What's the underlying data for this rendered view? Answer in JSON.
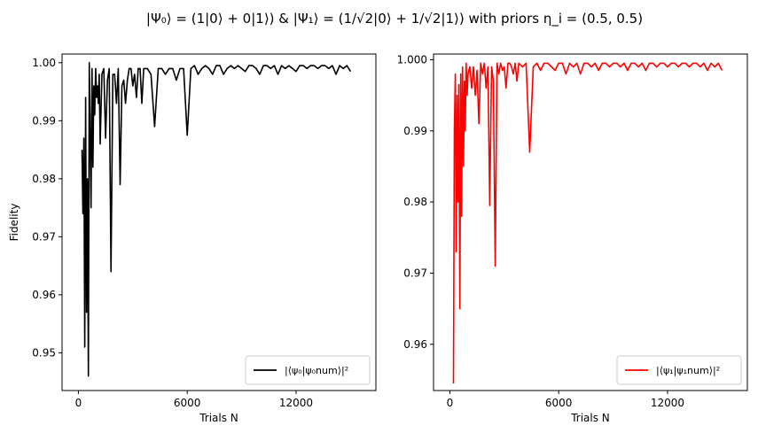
{
  "title": "|Ψ₀⟩ = (1|0⟩ + 0|1⟩) & |Ψ₁⟩ = (1/√2|0⟩ + 1/√2|1⟩) with priors η_i = (0.5, 0.5)",
  "chart_data": [
    {
      "type": "line",
      "panel": "left",
      "xlabel": "Trials N",
      "ylabel": "Fidelity",
      "xlim": [
        -900,
        16400
      ],
      "ylim": [
        0.9435,
        1.0015
      ],
      "xticks": [
        0,
        6000,
        12000
      ],
      "xtick_labels": [
        "0",
        "6000",
        "12000"
      ],
      "yticks": [
        0.95,
        0.96,
        0.97,
        0.98,
        0.99,
        1.0
      ],
      "ytick_labels": [
        "0.95",
        "0.96",
        "0.97",
        "0.98",
        "0.99",
        "1.00"
      ],
      "grid": false,
      "legend_position": "lower-right",
      "series": [
        {
          "name": "|⟨ψ₀|ψ₀num⟩|²",
          "color": "#000000",
          "x": [
            200,
            250,
            300,
            350,
            400,
            450,
            500,
            550,
            600,
            650,
            700,
            750,
            800,
            850,
            900,
            950,
            1000,
            1050,
            1100,
            1150,
            1200,
            1300,
            1400,
            1500,
            1600,
            1700,
            1800,
            1900,
            2000,
            2100,
            2200,
            2300,
            2400,
            2500,
            2600,
            2700,
            2800,
            2900,
            3000,
            3100,
            3200,
            3300,
            3400,
            3500,
            3600,
            3800,
            4000,
            4200,
            4400,
            4600,
            4800,
            5000,
            5200,
            5400,
            5600,
            5800,
            6000,
            6200,
            6400,
            6600,
            6800,
            7000,
            7200,
            7400,
            7600,
            7800,
            8000,
            8200,
            8400,
            8600,
            8800,
            9000,
            9200,
            9400,
            9600,
            9800,
            10000,
            10200,
            10400,
            10600,
            10800,
            11000,
            11200,
            11400,
            11600,
            11800,
            12000,
            12200,
            12400,
            12600,
            12800,
            13000,
            13200,
            13400,
            13600,
            13800,
            14000,
            14200,
            14400,
            14600,
            14800,
            15000
          ],
          "y": [
            0.985,
            0.974,
            0.987,
            0.951,
            0.994,
            0.957,
            0.98,
            0.946,
            1.0,
            0.988,
            0.975,
            0.999,
            0.982,
            0.996,
            0.991,
            0.999,
            0.994,
            0.996,
            0.993,
            0.998,
            0.986,
            0.998,
            0.999,
            0.987,
            0.997,
            0.999,
            0.964,
            0.998,
            0.998,
            0.993,
            0.999,
            0.979,
            0.996,
            0.997,
            0.993,
            0.997,
            0.999,
            0.999,
            0.996,
            0.998,
            0.994,
            0.999,
            0.999,
            0.993,
            0.999,
            0.999,
            0.998,
            0.989,
            0.999,
            0.999,
            0.998,
            0.999,
            0.999,
            0.997,
            0.999,
            0.999,
            0.9875,
            0.999,
            0.9995,
            0.998,
            0.999,
            0.9995,
            0.999,
            0.998,
            0.9995,
            0.9995,
            0.998,
            0.999,
            0.9995,
            0.999,
            0.9995,
            0.999,
            0.9985,
            0.9995,
            0.9995,
            0.999,
            0.998,
            0.9995,
            0.9995,
            0.999,
            0.9995,
            0.998,
            0.9995,
            0.999,
            0.9995,
            0.999,
            0.9985,
            0.9995,
            0.9995,
            0.999,
            0.9995,
            0.9995,
            0.999,
            0.9995,
            0.9995,
            0.999,
            0.9995,
            0.998,
            0.9995,
            0.999,
            0.9995,
            0.9985
          ]
        }
      ]
    },
    {
      "type": "line",
      "panel": "right",
      "xlabel": "Trials N",
      "ylabel": "",
      "xlim": [
        -900,
        16400
      ],
      "ylim": [
        0.9535,
        1.0008
      ],
      "xticks": [
        0,
        6000,
        12000
      ],
      "xtick_labels": [
        "0",
        "6000",
        "12000"
      ],
      "yticks": [
        0.96,
        0.97,
        0.98,
        0.99,
        1.0
      ],
      "ytick_labels": [
        "0.96",
        "0.97",
        "0.98",
        "0.99",
        "1.000"
      ],
      "grid": false,
      "legend_position": "lower-right",
      "series": [
        {
          "name": "|⟨ψ₁|ψ₁num⟩|²",
          "color": "#ff0000",
          "x": [
            200,
            250,
            300,
            350,
            400,
            450,
            500,
            550,
            600,
            650,
            700,
            750,
            800,
            850,
            900,
            950,
            1000,
            1100,
            1200,
            1300,
            1400,
            1500,
            1600,
            1700,
            1800,
            1900,
            2000,
            2100,
            2200,
            2300,
            2400,
            2500,
            2600,
            2700,
            2800,
            2900,
            3000,
            3100,
            3200,
            3300,
            3400,
            3500,
            3600,
            3700,
            3800,
            4000,
            4200,
            4400,
            4600,
            4800,
            5000,
            5200,
            5400,
            5600,
            5800,
            6000,
            6200,
            6400,
            6600,
            6800,
            7000,
            7200,
            7400,
            7600,
            7800,
            8000,
            8200,
            8400,
            8600,
            8800,
            9000,
            9200,
            9400,
            9600,
            9800,
            10000,
            10200,
            10400,
            10600,
            10800,
            11000,
            11200,
            11400,
            11600,
            11800,
            12000,
            12200,
            12400,
            12600,
            12800,
            13000,
            13200,
            13400,
            13600,
            13800,
            14000,
            14200,
            14400,
            14600,
            14800,
            15000
          ],
          "y": [
            0.9545,
            0.99,
            0.998,
            0.973,
            0.995,
            0.98,
            0.9965,
            0.965,
            0.998,
            0.978,
            0.999,
            0.985,
            0.997,
            0.99,
            0.9995,
            0.995,
            0.998,
            0.999,
            0.996,
            0.999,
            0.995,
            0.9985,
            0.991,
            0.9995,
            0.998,
            0.9995,
            0.996,
            0.999,
            0.9795,
            0.999,
            0.997,
            0.971,
            0.9995,
            0.998,
            0.9995,
            0.9985,
            0.999,
            0.996,
            0.9995,
            0.9995,
            0.999,
            0.998,
            0.9995,
            0.997,
            0.9995,
            0.999,
            0.9995,
            0.987,
            0.999,
            0.9995,
            0.9985,
            0.9995,
            0.9995,
            0.999,
            0.9985,
            0.9995,
            0.9995,
            0.998,
            0.9995,
            0.999,
            0.9995,
            0.998,
            0.9995,
            0.9995,
            0.999,
            0.9995,
            0.9985,
            0.9995,
            0.9995,
            0.999,
            0.9995,
            0.9995,
            0.999,
            0.9995,
            0.9985,
            0.9995,
            0.9995,
            0.999,
            0.9995,
            0.9985,
            0.9995,
            0.9995,
            0.999,
            0.9995,
            0.9995,
            0.999,
            0.9995,
            0.9995,
            0.999,
            0.9995,
            0.9995,
            0.999,
            0.9995,
            0.9995,
            0.999,
            0.9995,
            0.9985,
            0.9995,
            0.999,
            0.9995,
            0.9985
          ]
        }
      ]
    }
  ]
}
